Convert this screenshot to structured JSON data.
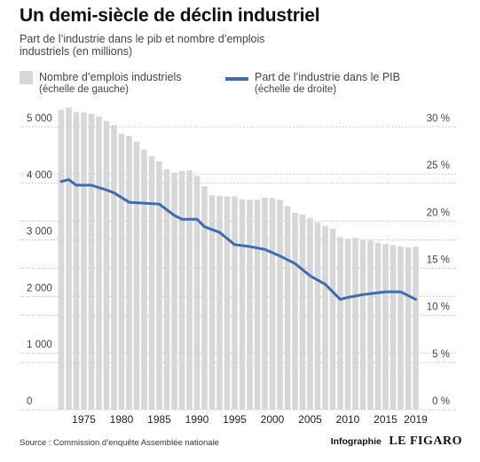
{
  "header": {
    "title": "Un demi-siècle de déclin industriel",
    "subtitle": "Part de l’industrie dans le pib et nombre d’emplois industriels (en millions)"
  },
  "legend": {
    "bars_label": "Nombre d’emplois industriels",
    "bars_sub": "(échelle de gauche)",
    "line_label": "Part de l’industrie dans le PIB",
    "line_sub": "(échelle de droite)"
  },
  "footer": {
    "source": "Source : Commission d’enquête Assemblée nationale",
    "credit_prefix": "Infographie",
    "credit_brand": "LE FIGARO"
  },
  "chart_data": {
    "type": "bar",
    "x": [
      1972,
      1973,
      1974,
      1975,
      1976,
      1977,
      1978,
      1979,
      1980,
      1981,
      1982,
      1983,
      1984,
      1985,
      1986,
      1987,
      1988,
      1989,
      1990,
      1991,
      1992,
      1993,
      1994,
      1995,
      1996,
      1997,
      1998,
      1999,
      2000,
      2001,
      2002,
      2003,
      2004,
      2005,
      2006,
      2007,
      2008,
      2009,
      2010,
      2011,
      2012,
      2013,
      2014,
      2015,
      2016,
      2017,
      2018,
      2019
    ],
    "x_ticks": [
      "1975",
      "1980",
      "1985",
      "1990",
      "1995",
      "2000",
      "2005",
      "2010",
      "2015",
      "2019"
    ],
    "x_tick_values": [
      1975,
      1980,
      1985,
      1990,
      1995,
      2000,
      2005,
      2010,
      2015,
      2019
    ],
    "series": [
      {
        "name": "Nombre d’emplois industriels",
        "axis": "left",
        "type": "bar",
        "color": "#d7d7d7",
        "values": [
          5300,
          5340,
          5260,
          5250,
          5230,
          5180,
          5100,
          5030,
          4880,
          4840,
          4740,
          4600,
          4480,
          4390,
          4250,
          4190,
          4220,
          4230,
          4130,
          3950,
          3790,
          3780,
          3770,
          3770,
          3720,
          3710,
          3710,
          3750,
          3740,
          3710,
          3600,
          3480,
          3450,
          3390,
          3310,
          3250,
          3200,
          3050,
          3020,
          3040,
          3000,
          2990,
          2950,
          2930,
          2910,
          2890,
          2870,
          2880
        ]
      },
      {
        "name": "Part de l’industrie dans le PIB",
        "axis": "right",
        "type": "line",
        "color": "#3d6db0",
        "points": [
          [
            1972,
            24.2
          ],
          [
            1973,
            24.4
          ],
          [
            1974,
            23.8
          ],
          [
            1976,
            23.8
          ],
          [
            1978,
            23.3
          ],
          [
            1979,
            23.0
          ],
          [
            1981,
            22.0
          ],
          [
            1983,
            21.9
          ],
          [
            1985,
            21.8
          ],
          [
            1987,
            20.6
          ],
          [
            1988,
            20.2
          ],
          [
            1990,
            20.2
          ],
          [
            1991,
            19.4
          ],
          [
            1993,
            18.8
          ],
          [
            1995,
            17.5
          ],
          [
            1997,
            17.3
          ],
          [
            1999,
            17.0
          ],
          [
            2001,
            16.3
          ],
          [
            2003,
            15.5
          ],
          [
            2005,
            14.2
          ],
          [
            2007,
            13.3
          ],
          [
            2009,
            11.7
          ],
          [
            2010,
            11.9
          ],
          [
            2012,
            12.2
          ],
          [
            2015,
            12.5
          ],
          [
            2017,
            12.5
          ],
          [
            2019,
            11.7
          ]
        ]
      }
    ],
    "y_left": {
      "range": [
        0,
        5000
      ],
      "ticks": [
        0,
        1000,
        2000,
        3000,
        4000,
        5000
      ],
      "tick_labels": [
        "0",
        "1 000",
        "2 000",
        "3 000",
        "4 000",
        "5 000"
      ]
    },
    "y_right": {
      "range": [
        0,
        30
      ],
      "ticks": [
        0,
        5,
        10,
        15,
        20,
        25,
        30
      ],
      "tick_labels": [
        "0 %",
        "5 %",
        "10 %",
        "15 %",
        "20 %",
        "25 %",
        "30 %"
      ]
    },
    "grid": true
  }
}
